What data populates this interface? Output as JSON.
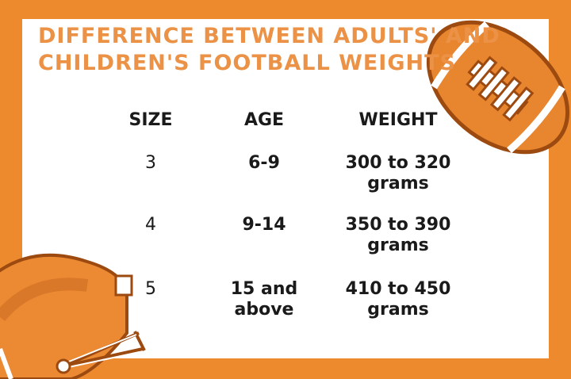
{
  "title_lines": [
    "DIFFERENCE BETWEEN ADULTS' AND",
    "CHILDREN'S FOOTBALL WEIGHTS"
  ],
  "table": {
    "header": [
      "SIZE",
      "AGE",
      "WEIGHT"
    ],
    "rows": [
      [
        "3",
        "6-9",
        "300 to 320 grams"
      ],
      [
        "4",
        "9-14",
        "350 to 390 grams"
      ],
      [
        "5",
        "15 and above",
        "410 to 450 grams"
      ]
    ]
  }
}
